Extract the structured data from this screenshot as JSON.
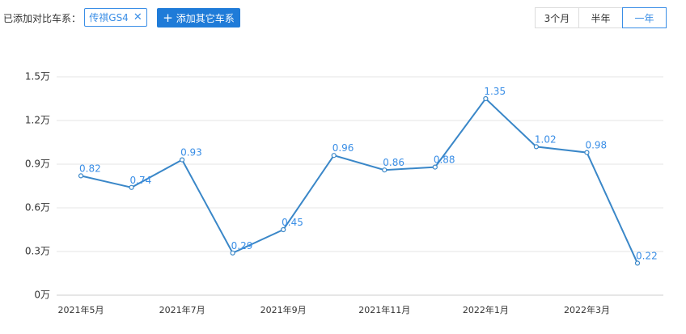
{
  "toolbar": {
    "compare_label": "已添加对比车系：",
    "chip_label": "传祺GS4",
    "chip_close": "✕",
    "add_plus": "+",
    "add_button": "添加其它车系",
    "ranges": [
      "3个月",
      "半年",
      "一年"
    ],
    "active_range": "一年"
  },
  "colors": {
    "accent": "#3a8ee6",
    "button_bg": "#1f7bd8",
    "gridline": "#e6e6e6",
    "line": "#3a87c8"
  },
  "chart_data": {
    "type": "line",
    "x": [
      "2021年5月",
      "2021年6月",
      "2021年7月",
      "2021年8月",
      "2021年9月",
      "2021年10月",
      "2021年11月",
      "2021年12月",
      "2022年1月",
      "2022年2月",
      "2022年3月",
      "2022年4月"
    ],
    "xtick_labels": [
      "2021年5月",
      "2021年7月",
      "2021年9月",
      "2021年11月",
      "2022年1月",
      "2022年3月"
    ],
    "values": [
      0.82,
      0.74,
      0.93,
      0.29,
      0.45,
      0.96,
      0.86,
      0.88,
      1.35,
      1.02,
      0.98,
      0.22
    ],
    "data_labels": [
      "0.82",
      "0.74",
      "0.93",
      "0.29",
      "0.45",
      "0.96",
      "0.86",
      "0.88",
      "1.35",
      "1.02",
      "0.98",
      "0.22"
    ],
    "yticks": [
      0,
      0.3,
      0.6,
      0.9,
      1.2,
      1.5
    ],
    "ytick_labels": [
      "0万",
      "0.3万",
      "0.6万",
      "0.9万",
      "1.2万",
      "1.5万"
    ],
    "ylim": [
      0,
      1.5
    ],
    "grid": true,
    "title": "",
    "xlabel": "",
    "ylabel": ""
  }
}
